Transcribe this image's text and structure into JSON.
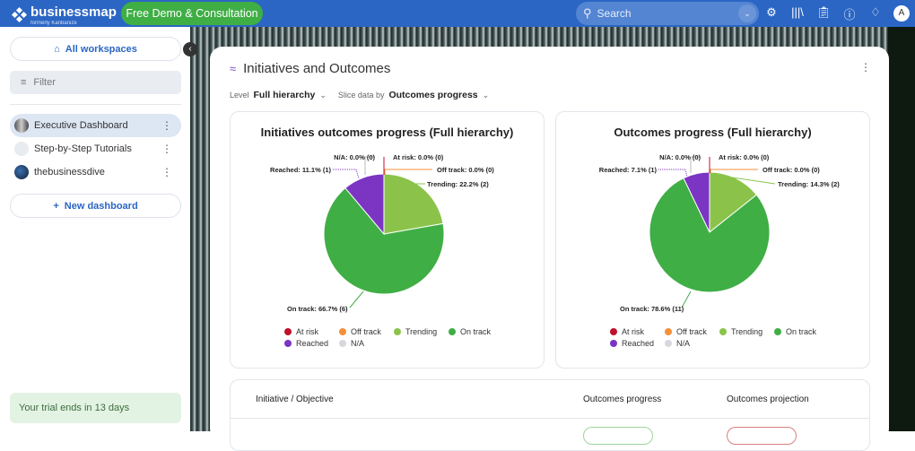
{
  "topbar": {
    "brand": "businessmap",
    "brand_sub": "formerly Kanbanize",
    "demo_button": "Free Demo & Consultation",
    "search_placeholder": "Search",
    "avatar": "A",
    "icons": [
      "gear-icon",
      "library-icon",
      "clipboard-icon",
      "help-icon",
      "bell-icon"
    ]
  },
  "sidebar": {
    "all_workspaces": "All workspaces",
    "filter_placeholder": "Filter",
    "items": [
      {
        "label": "Executive Dashboard",
        "active": true
      },
      {
        "label": "Step-by-Step Tutorials"
      },
      {
        "label": "thebusinessdive"
      }
    ],
    "new_dashboard": "New dashboard",
    "trial": "Your trial ends in 13 days"
  },
  "panel": {
    "title": "Initiatives and Outcomes",
    "level_label": "Level",
    "level_value": "Full hierarchy",
    "slice_label": "Slice data by",
    "slice_value": "Outcomes progress"
  },
  "legend": [
    {
      "label": "At risk",
      "color": "#c0102a"
    },
    {
      "label": "Off track",
      "color": "#f5903a"
    },
    {
      "label": "Trending",
      "color": "#8bc34a"
    },
    {
      "label": "On track",
      "color": "#3fae45"
    },
    {
      "label": "Reached",
      "color": "#7b35c2"
    },
    {
      "label": "N/A",
      "color": "#d5d8dd"
    }
  ],
  "chart_data": [
    {
      "type": "pie",
      "title": "Initiatives outcomes progress (Full hierarchy)",
      "slices": [
        {
          "label": "At risk",
          "value": 0,
          "percent": "0.0%",
          "text": "At risk: 0.0% (0)"
        },
        {
          "label": "Off track",
          "value": 0,
          "percent": "0.0%",
          "text": "Off track: 0.0% (0)"
        },
        {
          "label": "Trending",
          "value": 2,
          "percent": "22.2%",
          "text": "Trending: 22.2% (2)"
        },
        {
          "label": "On track",
          "value": 6,
          "percent": "66.7%",
          "text": "On track: 66.7% (6)"
        },
        {
          "label": "Reached",
          "value": 1,
          "percent": "11.1%",
          "text": "Reached: 11.1% (1)"
        },
        {
          "label": "N/A",
          "value": 0,
          "percent": "0.0%",
          "text": "N/A: 0.0% (0)"
        }
      ]
    },
    {
      "type": "pie",
      "title": "Outcomes progress (Full hierarchy)",
      "slices": [
        {
          "label": "At risk",
          "value": 0,
          "percent": "0.0%",
          "text": "At risk: 0.0% (0)"
        },
        {
          "label": "Off track",
          "value": 0,
          "percent": "0.0%",
          "text": "Off track: 0.0% (0)"
        },
        {
          "label": "Trending",
          "value": 2,
          "percent": "14.3%",
          "text": "Trending: 14.3% (2)"
        },
        {
          "label": "On track",
          "value": 11,
          "percent": "78.6%",
          "text": "On track: 78.6% (11)"
        },
        {
          "label": "Reached",
          "value": 1,
          "percent": "7.1%",
          "text": "Reached: 7.1% (1)"
        },
        {
          "label": "N/A",
          "value": 0,
          "percent": "0.0%",
          "text": "N/A: 0.0% (0)"
        }
      ]
    }
  ],
  "table": {
    "headers": [
      "Initiative / Objective",
      "Outcomes progress",
      "Outcomes projection"
    ]
  }
}
